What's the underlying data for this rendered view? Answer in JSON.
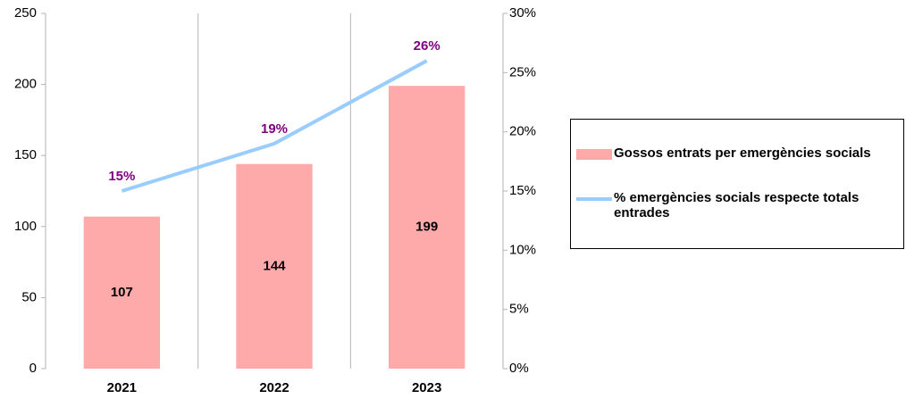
{
  "chart_data": {
    "type": "bar_line",
    "categories": [
      "2021",
      "2022",
      "2023"
    ],
    "series": [
      {
        "name": "Gossos entrats per emergències socials",
        "type": "bar",
        "color": "#ffaaaa",
        "values": [
          107,
          144,
          199
        ]
      },
      {
        "name": "% emergències socials respecte totals entrades",
        "type": "line",
        "axis": "y2",
        "color": "#99ccff",
        "values": [
          15,
          19,
          26
        ],
        "value_labels": [
          "15%",
          "19%",
          "26%"
        ],
        "label_color": "#800080"
      }
    ],
    "ylim": [
      0,
      250
    ],
    "yticks": [
      0,
      50,
      100,
      150,
      200,
      250
    ],
    "y2lim": [
      0,
      30
    ],
    "y2ticks": [
      {
        "value": 0,
        "label": "0%"
      },
      {
        "value": 5,
        "label": "5%"
      },
      {
        "value": 10,
        "label": "10%"
      },
      {
        "value": 15,
        "label": "15%"
      },
      {
        "value": 20,
        "label": "20%"
      },
      {
        "value": 25,
        "label": "25%"
      },
      {
        "value": 30,
        "label": "30%"
      }
    ],
    "legend": "right"
  }
}
